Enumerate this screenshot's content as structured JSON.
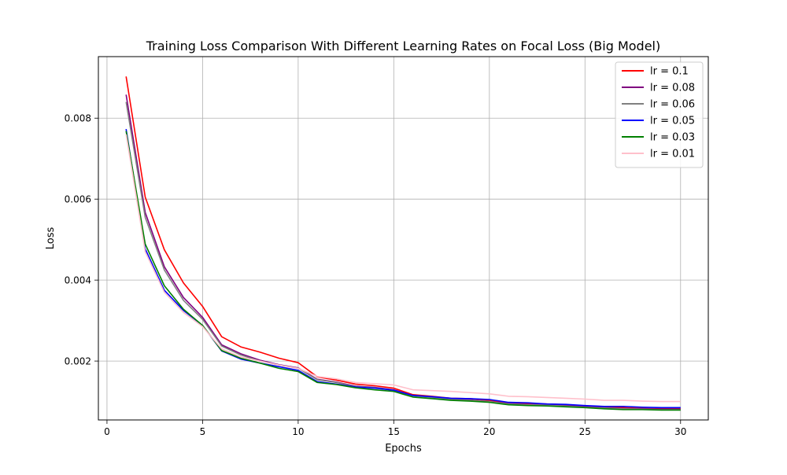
{
  "chart_data": {
    "type": "line",
    "title": "Training Loss Comparison With Different Learning Rates on Focal Loss (Big Model)",
    "xlabel": "Epochs",
    "ylabel": "Loss",
    "xlim": [
      -0.45,
      31.45
    ],
    "ylim": [
      0.000545,
      0.00952
    ],
    "xticks": [
      0,
      5,
      10,
      15,
      20,
      25,
      30
    ],
    "xtick_labels": [
      "0",
      "5",
      "10",
      "15",
      "20",
      "25",
      "30"
    ],
    "yticks": [
      0.002,
      0.004,
      0.006,
      0.008
    ],
    "ytick_labels": [
      "0.002",
      "0.004",
      "0.006",
      "0.008"
    ],
    "grid": true,
    "legend_position": "top-right",
    "x": [
      1,
      2,
      3,
      4,
      5,
      6,
      7,
      8,
      9,
      10,
      11,
      12,
      13,
      14,
      15,
      16,
      17,
      18,
      19,
      20,
      21,
      22,
      23,
      24,
      25,
      26,
      27,
      28,
      29,
      30
    ],
    "series": [
      {
        "name": "lr = 0.1",
        "color": "#ff0000",
        "values": [
          0.00903,
          0.00605,
          0.00475,
          0.00393,
          0.00335,
          0.0026,
          0.00235,
          0.00222,
          0.00207,
          0.00196,
          0.00161,
          0.00153,
          0.00143,
          0.00139,
          0.00133,
          0.00117,
          0.00113,
          0.00108,
          0.00107,
          0.00103,
          0.00097,
          0.00095,
          0.00094,
          0.00092,
          0.00089,
          0.00086,
          0.00085,
          0.00083,
          0.00082,
          0.00082
        ]
      },
      {
        "name": "lr = 0.08",
        "color": "#800080",
        "values": [
          0.00858,
          0.00567,
          0.00433,
          0.00357,
          0.00308,
          0.0024,
          0.00218,
          0.00202,
          0.00191,
          0.00183,
          0.00155,
          0.00148,
          0.00138,
          0.00135,
          0.00129,
          0.00115,
          0.00111,
          0.00106,
          0.00104,
          0.001,
          0.00095,
          0.00093,
          0.00092,
          0.0009,
          0.00087,
          0.00085,
          0.00083,
          0.00082,
          0.00081,
          0.00081
        ]
      },
      {
        "name": "lr = 0.06",
        "color": "#808080",
        "values": [
          0.0084,
          0.00555,
          0.00425,
          0.0035,
          0.00303,
          0.00237,
          0.00215,
          0.002,
          0.0019,
          0.00182,
          0.00154,
          0.00147,
          0.00137,
          0.00134,
          0.00128,
          0.00114,
          0.0011,
          0.00105,
          0.00103,
          0.001,
          0.00094,
          0.00092,
          0.00091,
          0.00089,
          0.00086,
          0.00084,
          0.00082,
          0.00081,
          0.0008,
          0.0008
        ]
      },
      {
        "name": "lr = 0.05",
        "color": "#0000ff",
        "values": [
          0.00773,
          0.00477,
          0.00375,
          0.00325,
          0.00288,
          0.00225,
          0.00205,
          0.00195,
          0.00186,
          0.00177,
          0.00149,
          0.00143,
          0.00136,
          0.00133,
          0.00128,
          0.00115,
          0.00112,
          0.00108,
          0.00107,
          0.00105,
          0.00098,
          0.00097,
          0.00094,
          0.00093,
          0.0009,
          0.00088,
          0.00088,
          0.00086,
          0.00085,
          0.00085
        ]
      },
      {
        "name": "lr = 0.03",
        "color": "#008000",
        "values": [
          0.00768,
          0.00489,
          0.00386,
          0.00328,
          0.00288,
          0.00226,
          0.00207,
          0.00195,
          0.00182,
          0.00174,
          0.00147,
          0.00142,
          0.00134,
          0.00129,
          0.00125,
          0.00111,
          0.00107,
          0.00103,
          0.00101,
          0.00098,
          0.00092,
          0.0009,
          0.00089,
          0.00087,
          0.00085,
          0.00082,
          0.0008,
          0.0008,
          0.00079,
          0.00079
        ]
      },
      {
        "name": "lr = 0.01",
        "color": "#ffc0cb",
        "values": [
          0.0076,
          0.0047,
          0.0037,
          0.0032,
          0.00285,
          0.0023,
          0.0021,
          0.002,
          0.0019,
          0.00182,
          0.00162,
          0.00156,
          0.00147,
          0.00144,
          0.00141,
          0.00129,
          0.00127,
          0.00125,
          0.00122,
          0.00119,
          0.00113,
          0.00112,
          0.0011,
          0.00108,
          0.00106,
          0.00103,
          0.00103,
          0.00101,
          0.001,
          0.001
        ]
      }
    ]
  }
}
